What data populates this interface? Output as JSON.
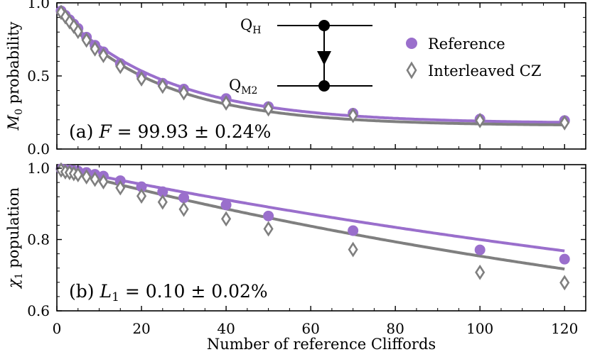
{
  "figure": {
    "xlabel": "Number of reference Cliffords",
    "xticks": [
      0,
      20,
      40,
      60,
      80,
      100,
      120
    ]
  },
  "legend": {
    "reference": "Reference",
    "interleaved": "Interleaved CZ"
  },
  "circuit": {
    "top_label": "Q",
    "top_sub": "H",
    "bottom_label": "Q",
    "bottom_sub": "M2"
  },
  "colors": {
    "reference": "#9a6fcc",
    "interleaved": "#7f7f7f"
  },
  "chart_data": [
    {
      "type": "scatter",
      "panel": "(a)",
      "ylabel": "M0 probability",
      "ylabel_italic": "M",
      "ylabel_sub": "0",
      "ylabel_rest": " probability",
      "annotation": {
        "prefix": "(a) ",
        "symbol": "F",
        "rest": " = 99.93 ± 0.24%"
      },
      "xlim": [
        0,
        125
      ],
      "ylim": [
        0,
        1.0
      ],
      "yticks": [
        0.0,
        0.5,
        1.0
      ],
      "ytick_labels": [
        "0.0",
        "0.5",
        "1.0"
      ],
      "series": [
        {
          "name": "Reference",
          "marker": "circle",
          "x": [
            1,
            2,
            3,
            4,
            5,
            7,
            9,
            11,
            15,
            20,
            25,
            30,
            40,
            50,
            70,
            100,
            120
          ],
          "y": [
            0.945,
            0.915,
            0.885,
            0.855,
            0.825,
            0.765,
            0.71,
            0.665,
            0.585,
            0.505,
            0.45,
            0.41,
            0.345,
            0.29,
            0.245,
            0.205,
            0.195
          ]
        },
        {
          "name": "Interleaved CZ",
          "marker": "diamond",
          "x": [
            1,
            2,
            3,
            4,
            5,
            7,
            9,
            11,
            15,
            20,
            25,
            30,
            40,
            50,
            70,
            100,
            120
          ],
          "y": [
            0.935,
            0.905,
            0.87,
            0.84,
            0.805,
            0.745,
            0.685,
            0.64,
            0.565,
            0.48,
            0.43,
            0.385,
            0.315,
            0.275,
            0.23,
            0.195,
            0.18
          ]
        }
      ],
      "fits": [
        {
          "series": "Reference",
          "A": 0.78,
          "p": 0.962,
          "B": 0.175
        },
        {
          "series": "Interleaved CZ",
          "A": 0.785,
          "p": 0.959,
          "B": 0.16
        }
      ]
    },
    {
      "type": "scatter",
      "panel": "(b)",
      "ylabel": "χ1 population",
      "ylabel_italic": "χ",
      "ylabel_sub": "1",
      "ylabel_rest": " population",
      "annotation": {
        "prefix": "(b) ",
        "symbol": "L",
        "symbol_sub": "1",
        "rest": " = 0.10 ± 0.02%"
      },
      "xlim": [
        0,
        125
      ],
      "ylim": [
        0.6,
        1.01
      ],
      "yticks": [
        0.6,
        0.8,
        1.0
      ],
      "ytick_labels": [
        "0.6",
        "0.8",
        "1.0"
      ],
      "series": [
        {
          "name": "Reference",
          "marker": "circle",
          "x": [
            1,
            2,
            3,
            4,
            5,
            7,
            9,
            11,
            15,
            20,
            25,
            30,
            40,
            50,
            70,
            100,
            120
          ],
          "y": [
            0.998,
            0.996,
            0.995,
            0.993,
            0.992,
            0.988,
            0.983,
            0.978,
            0.965,
            0.948,
            0.934,
            0.917,
            0.897,
            0.866,
            0.825,
            0.771,
            0.745
          ]
        },
        {
          "name": "Interleaved CZ",
          "marker": "diamond",
          "x": [
            1,
            2,
            3,
            4,
            5,
            7,
            9,
            11,
            15,
            20,
            25,
            30,
            40,
            50,
            70,
            100,
            120
          ],
          "y": [
            0.995,
            0.99,
            0.988,
            0.985,
            0.982,
            0.976,
            0.969,
            0.962,
            0.945,
            0.922,
            0.905,
            0.885,
            0.858,
            0.83,
            0.772,
            0.708,
            0.679
          ]
        }
      ],
      "fits": [
        {
          "series": "Reference",
          "A": 0.625,
          "p": 0.9961,
          "B": 0.377
        },
        {
          "series": "Interleaved CZ",
          "A": 0.64,
          "p": 0.9952,
          "B": 0.358
        }
      ]
    }
  ]
}
